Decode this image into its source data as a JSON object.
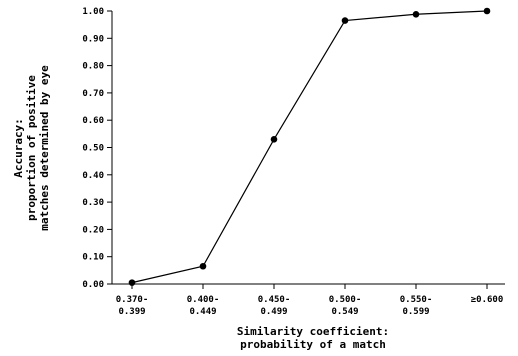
{
  "chart_data": {
    "type": "line",
    "title": "",
    "xlabel": [
      "Similarity coefficient:",
      "probability of a match"
    ],
    "ylabel": [
      "Accuracy:",
      "proportion of positive",
      "matches determined by eye"
    ],
    "categories": [
      [
        "0.370-",
        "0.399"
      ],
      [
        "0.400-",
        "0.449"
      ],
      [
        "0.450-",
        "0.499"
      ],
      [
        "0.500-",
        "0.549"
      ],
      [
        "0.550-",
        "0.599"
      ],
      [
        "≥0.600"
      ]
    ],
    "series": [
      {
        "values": [
          0.005,
          0.065,
          0.53,
          0.965,
          0.988,
          1.0
        ]
      }
    ],
    "yticks": [
      "0.00",
      "0.10",
      "0.20",
      "0.30",
      "0.40",
      "0.50",
      "0.60",
      "0.70",
      "0.80",
      "0.90",
      "1.00"
    ],
    "ylim": [
      0,
      1.0
    ],
    "grid": false,
    "legend": "none",
    "colors": {
      "line": "#000000",
      "marker": "#000000",
      "axis": "#000000"
    }
  }
}
